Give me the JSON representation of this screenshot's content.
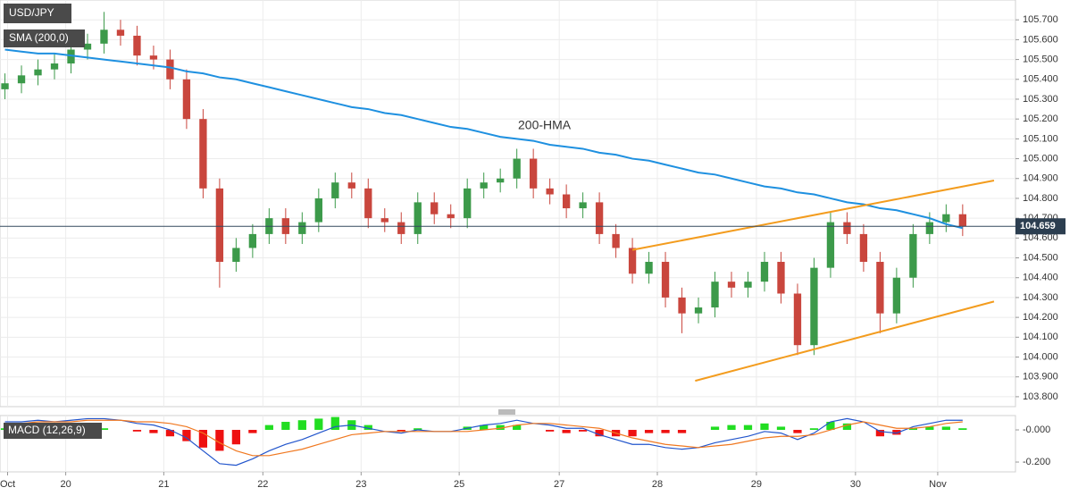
{
  "chart_data": {
    "type": "candlestick",
    "title": "USD/JPY",
    "indicator_label": "SMA (200,0)",
    "up_color": "#3c9a4a",
    "down_color": "#c9463d",
    "open": [
      105.35,
      105.38,
      105.42,
      105.45,
      105.48,
      105.55,
      105.58,
      105.65,
      105.62,
      105.52,
      105.5,
      105.4,
      105.2,
      104.85,
      104.48,
      104.55,
      104.62,
      104.7,
      104.62,
      104.68,
      104.8,
      104.88,
      104.85,
      104.7,
      104.68,
      104.62,
      104.78,
      104.72,
      104.7,
      104.85,
      104.88,
      104.9,
      105.0,
      104.85,
      104.82,
      104.75,
      104.78,
      104.62,
      104.55,
      104.42,
      104.48,
      104.3,
      104.22,
      104.25,
      104.38,
      104.35,
      104.38,
      104.48,
      104.32,
      104.06,
      104.45,
      104.68,
      104.62,
      104.48,
      104.22,
      104.4,
      104.62,
      104.68,
      104.72
    ],
    "high": [
      105.43,
      105.47,
      105.5,
      105.53,
      105.6,
      105.63,
      105.74,
      105.7,
      105.67,
      105.57,
      105.55,
      105.45,
      105.25,
      104.9,
      104.6,
      104.67,
      104.75,
      104.75,
      104.73,
      104.85,
      104.93,
      104.93,
      104.9,
      104.75,
      104.73,
      104.83,
      104.83,
      104.77,
      104.9,
      104.93,
      104.95,
      105.05,
      105.05,
      104.9,
      104.87,
      104.83,
      104.83,
      104.67,
      104.6,
      104.53,
      104.53,
      104.35,
      104.3,
      104.43,
      104.43,
      104.43,
      104.53,
      104.53,
      104.37,
      104.5,
      104.73,
      104.73,
      104.67,
      104.53,
      104.45,
      104.67,
      104.73,
      104.77,
      104.77
    ],
    "low": [
      105.3,
      105.33,
      105.37,
      105.4,
      105.43,
      105.5,
      105.53,
      105.57,
      105.47,
      105.45,
      105.35,
      105.15,
      104.8,
      104.35,
      104.43,
      104.5,
      104.57,
      104.57,
      104.57,
      104.63,
      104.75,
      104.8,
      104.65,
      104.63,
      104.57,
      104.57,
      104.67,
      104.65,
      104.65,
      104.8,
      104.83,
      104.85,
      104.8,
      104.77,
      104.7,
      104.7,
      104.57,
      104.5,
      104.37,
      104.37,
      104.25,
      104.12,
      104.17,
      104.2,
      104.3,
      104.3,
      104.33,
      104.27,
      104.01,
      104.01,
      104.4,
      104.57,
      104.43,
      104.12,
      104.17,
      104.35,
      104.57,
      104.63,
      104.61
    ],
    "close": [
      105.38,
      105.42,
      105.45,
      105.48,
      105.55,
      105.58,
      105.65,
      105.62,
      105.52,
      105.5,
      105.4,
      105.2,
      104.85,
      104.48,
      104.55,
      104.62,
      104.7,
      104.62,
      104.68,
      104.8,
      104.88,
      104.85,
      104.7,
      104.68,
      104.62,
      104.78,
      104.72,
      104.7,
      104.85,
      104.88,
      104.9,
      105.0,
      104.85,
      104.82,
      104.75,
      104.78,
      104.62,
      104.55,
      104.42,
      104.48,
      104.3,
      104.22,
      104.25,
      104.38,
      104.35,
      104.38,
      104.48,
      104.32,
      104.06,
      104.45,
      104.68,
      104.62,
      104.48,
      104.22,
      104.4,
      104.62,
      104.68,
      104.72,
      104.66
    ],
    "hma": {
      "name": "200-HMA",
      "color": "#1e90e0",
      "values": [
        105.55,
        105.54,
        105.53,
        105.53,
        105.52,
        105.51,
        105.5,
        105.49,
        105.48,
        105.47,
        105.46,
        105.44,
        105.43,
        105.41,
        105.4,
        105.38,
        105.36,
        105.34,
        105.32,
        105.3,
        105.28,
        105.26,
        105.25,
        105.23,
        105.22,
        105.2,
        105.18,
        105.16,
        105.15,
        105.13,
        105.11,
        105.1,
        105.09,
        105.07,
        105.06,
        105.05,
        105.03,
        105.02,
        105.0,
        104.99,
        104.97,
        104.95,
        104.93,
        104.92,
        104.9,
        104.88,
        104.86,
        104.85,
        104.83,
        104.82,
        104.8,
        104.78,
        104.77,
        104.75,
        104.74,
        104.72,
        104.7,
        104.67,
        104.65
      ]
    },
    "trend_color": "#f39c1e",
    "trend_lines": [
      {
        "x": [
          38,
          59.9
        ],
        "values": [
          104.54,
          104.89
        ]
      },
      {
        "x": [
          41.8,
          59.9
        ],
        "values": [
          103.88,
          104.28
        ]
      }
    ],
    "last_price": 104.659,
    "xlim": [
      -0.3,
      61.2
    ],
    "ylim": [
      103.75,
      105.8
    ],
    "grid": true,
    "yticks": [
      {
        "value": 105.7,
        "label": "105.700"
      },
      {
        "value": 105.6,
        "label": "105.600"
      },
      {
        "value": 105.5,
        "label": "105.500"
      },
      {
        "value": 105.4,
        "label": "105.400"
      },
      {
        "value": 105.3,
        "label": "105.300"
      },
      {
        "value": 105.2,
        "label": "105.200"
      },
      {
        "value": 105.1,
        "label": "105.100"
      },
      {
        "value": 105.0,
        "label": "105.000"
      },
      {
        "value": 104.9,
        "label": "104.900"
      },
      {
        "value": 104.8,
        "label": "104.800"
      },
      {
        "value": 104.7,
        "label": "104.700"
      },
      {
        "value": 104.6,
        "label": "104.600"
      },
      {
        "value": 104.5,
        "label": "104.500"
      },
      {
        "value": 104.4,
        "label": "104.400"
      },
      {
        "value": 104.3,
        "label": "104.300"
      },
      {
        "value": 104.2,
        "label": "104.200"
      },
      {
        "value": 104.1,
        "label": "104.100"
      },
      {
        "value": 104.0,
        "label": "104.000"
      },
      {
        "value": 103.9,
        "label": "103.900"
      },
      {
        "value": 103.8,
        "label": "103.800"
      }
    ],
    "xticks": [
      {
        "value": 0.16,
        "label": "Oct"
      },
      {
        "value": 3.68,
        "label": "20"
      },
      {
        "value": 9.62,
        "label": "21"
      },
      {
        "value": 15.62,
        "label": "22"
      },
      {
        "value": 21.57,
        "label": "23"
      },
      {
        "value": 27.51,
        "label": "25"
      },
      {
        "value": 33.57,
        "label": "27"
      },
      {
        "value": 39.51,
        "label": "28"
      },
      {
        "value": 45.51,
        "label": "29"
      },
      {
        "value": 51.51,
        "label": "30"
      },
      {
        "value": 56.49,
        "label": "Nov"
      }
    ],
    "macd": {
      "label": "MACD (12,26,9)",
      "ylim": [
        -0.261,
        0.089
      ],
      "yticks": [
        {
          "value": 0,
          "label": "-0.000"
        },
        {
          "value": -0.2,
          "label": "-0.200"
        }
      ],
      "positive_color": "#22dd22",
      "negative_color": "#ee1111",
      "histogram": [
        0.01,
        0.01,
        0.01,
        0,
        0.01,
        0.01,
        0.01,
        0,
        -0.01,
        -0.02,
        -0.04,
        -0.07,
        -0.11,
        -0.13,
        -0.09,
        -0.02,
        0.03,
        0.05,
        0.06,
        0.07,
        0.08,
        0.06,
        0.03,
        0,
        -0.01,
        0.01,
        0,
        0,
        0.02,
        0.03,
        0.03,
        0.03,
        0,
        -0.01,
        -0.02,
        -0.01,
        -0.04,
        -0.04,
        -0.04,
        -0.02,
        -0.02,
        -0.02,
        0,
        0.02,
        0.03,
        0.03,
        0.04,
        0.02,
        -0.02,
        0.01,
        0.05,
        0.04,
        0,
        -0.04,
        -0.03,
        0.01,
        0.02,
        0.02,
        0.01
      ],
      "macd_line": {
        "color": "#2255cc",
        "values": [
          0.05,
          0.05,
          0.06,
          0.05,
          0.06,
          0.07,
          0.07,
          0.06,
          0.04,
          0.03,
          0.0,
          -0.05,
          -0.13,
          -0.21,
          -0.22,
          -0.18,
          -0.13,
          -0.09,
          -0.06,
          -0.02,
          0.02,
          0.03,
          0.01,
          -0.01,
          -0.02,
          0.0,
          -0.01,
          -0.01,
          0.01,
          0.03,
          0.04,
          0.06,
          0.04,
          0.03,
          0.01,
          0.01,
          -0.03,
          -0.06,
          -0.09,
          -0.09,
          -0.11,
          -0.12,
          -0.11,
          -0.08,
          -0.06,
          -0.04,
          -0.01,
          -0.02,
          -0.06,
          -0.02,
          0.05,
          0.07,
          0.05,
          -0.01,
          -0.02,
          0.02,
          0.04,
          0.06,
          0.06
        ]
      },
      "signal_line": {
        "color": "#f07820",
        "values": [
          0.04,
          0.04,
          0.05,
          0.05,
          0.05,
          0.06,
          0.06,
          0.06,
          0.05,
          0.05,
          0.04,
          0.02,
          -0.02,
          -0.08,
          -0.13,
          -0.16,
          -0.16,
          -0.14,
          -0.12,
          -0.09,
          -0.06,
          -0.03,
          -0.02,
          -0.01,
          -0.01,
          -0.01,
          -0.01,
          -0.01,
          -0.01,
          0.0,
          0.01,
          0.03,
          0.04,
          0.04,
          0.03,
          0.02,
          0.01,
          -0.02,
          -0.05,
          -0.07,
          -0.09,
          -0.1,
          -0.11,
          -0.1,
          -0.09,
          -0.07,
          -0.05,
          -0.04,
          -0.04,
          -0.03,
          0.0,
          0.03,
          0.05,
          0.03,
          0.01,
          0.01,
          0.02,
          0.04,
          0.05
        ]
      }
    }
  }
}
